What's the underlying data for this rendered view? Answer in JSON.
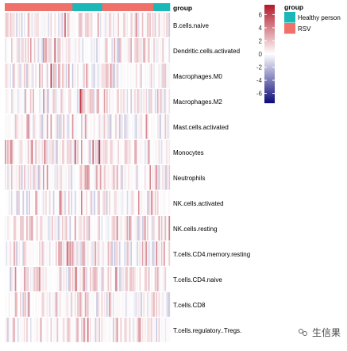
{
  "chart_data": {
    "type": "heatmap",
    "title": "",
    "annotation": {
      "title": "group",
      "legend_title": "group",
      "categories": [
        {
          "name": "Healthy person",
          "color": "#1CB7B7"
        },
        {
          "name": "RSV",
          "color": "#F0706A"
        }
      ],
      "segments": [
        {
          "group": "RSV",
          "from": 0,
          "to": 0.41
        },
        {
          "group": "Healthy person",
          "from": 0.41,
          "to": 0.59
        },
        {
          "group": "RSV",
          "from": 0.59,
          "to": 0.9
        },
        {
          "group": "Healthy person",
          "from": 0.9,
          "to": 1.0
        }
      ]
    },
    "rows": [
      "B.cells.naive",
      "Dendritic.cells.activated",
      "Macrophages.M0",
      "Macrophages.M2",
      "Mast.cells.activated",
      "Monocytes",
      "Neutrophils",
      "NK.cells.activated",
      "NK.cells.resting",
      "T.cells.CD4.memory.resting",
      "T.cells.CD4.naive",
      "T.cells.CD8",
      "T.cells.regulatory..Tregs."
    ],
    "n_columns": 130,
    "colorbar": {
      "ticks": [
        6,
        4,
        2,
        0,
        -2,
        -4,
        -6
      ],
      "range": [
        -7.5,
        7.5
      ],
      "colors": {
        "low": "#0A0A7A",
        "mid": "#FFFFFF",
        "high": "#B2182B"
      }
    }
  },
  "watermark": {
    "text": "生信果"
  }
}
